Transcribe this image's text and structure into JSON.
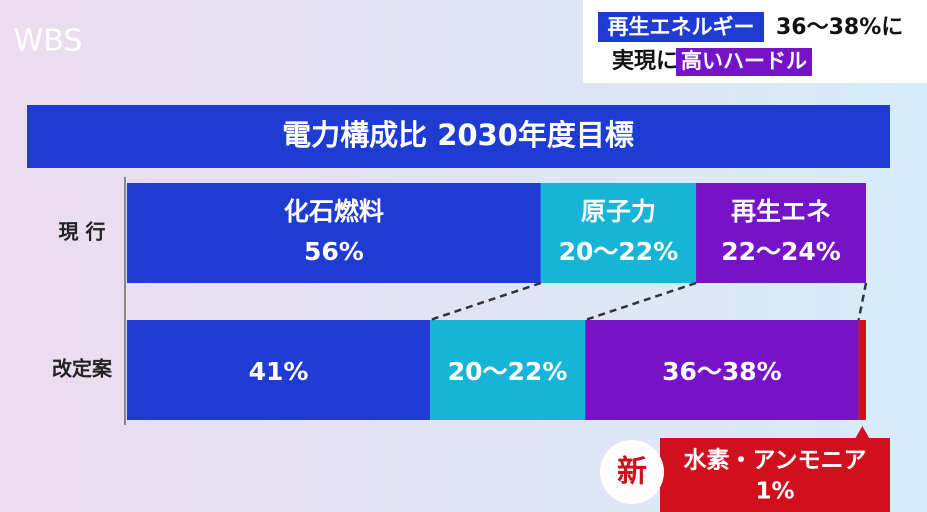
{
  "header": {
    "badge1": "再生エネルギー",
    "text1": "36〜38%に",
    "text2": "実現に",
    "badge2": "高いハードル",
    "logo": "WBS",
    "new_badge": "新"
  },
  "chart_data": {
    "type": "stacked_barh",
    "title": "電力構成比 2030年度目標",
    "categories": [
      "現 行",
      "改定案"
    ],
    "series": [
      {
        "name": "化石燃料",
        "color": "#1f3cd2",
        "values": [
          56,
          41
        ],
        "value_labels": [
          "56%",
          "41%"
        ]
      },
      {
        "name": "原子力",
        "color": "#16b5d8",
        "values": [
          21,
          21
        ],
        "value_labels": [
          "20〜22%",
          "20〜22%"
        ]
      },
      {
        "name": "再生エネ",
        "color": "#7612c8",
        "values": [
          23,
          37
        ],
        "value_labels": [
          "22〜24%",
          "36〜38%"
        ]
      },
      {
        "name": "水素・アンモニア",
        "color": "#d0101c",
        "values": [
          null,
          1
        ],
        "value_labels": [
          null,
          "1%"
        ]
      }
    ],
    "xlim": [
      0,
      100
    ]
  }
}
